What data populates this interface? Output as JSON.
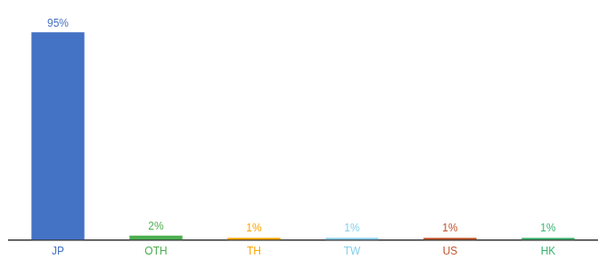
{
  "chart_data": {
    "type": "bar",
    "categories": [
      "JP",
      "OTH",
      "TH",
      "TW",
      "US",
      "HK"
    ],
    "values": [
      95,
      2,
      1,
      1,
      1,
      1
    ],
    "value_labels": [
      "95%",
      "2%",
      "1%",
      "1%",
      "1%",
      "1%"
    ],
    "colors": [
      "#4472c4",
      "#4caf50",
      "#ffa500",
      "#87ceeb",
      "#c0522a",
      "#3cb371"
    ],
    "ylim": [
      0,
      100
    ],
    "data_labels": true,
    "grid": false,
    "tick_labels": "x"
  }
}
